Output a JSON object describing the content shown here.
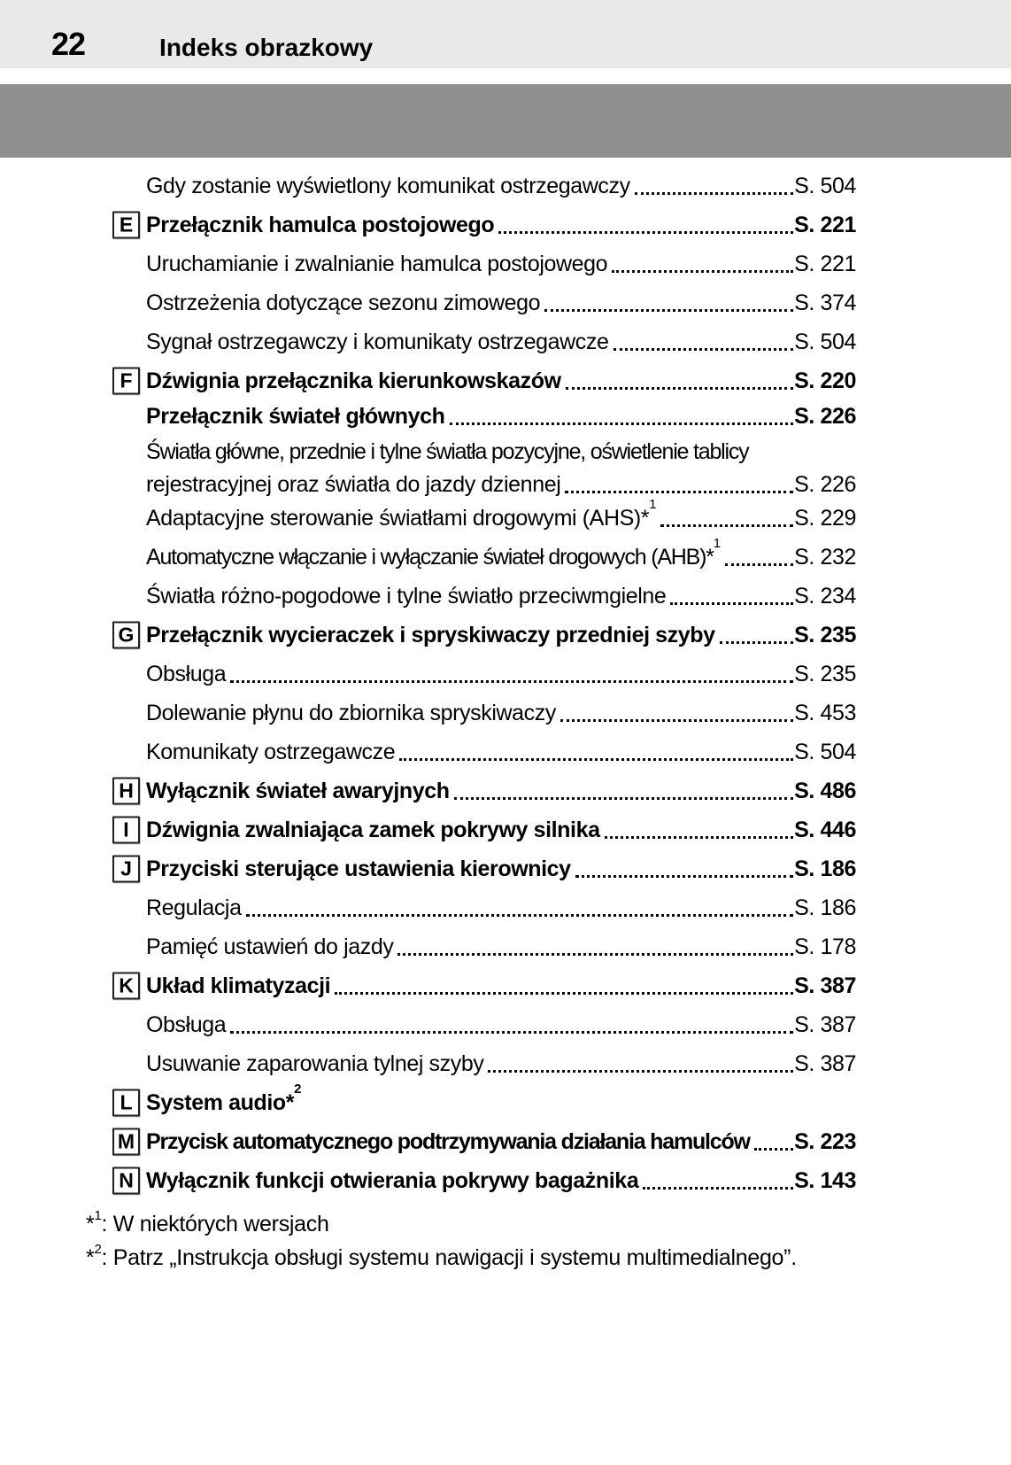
{
  "header": {
    "page_number": "22",
    "title": "Indeks obrazkowy"
  },
  "colors": {
    "header_band": "#e9e9e9",
    "section_bar": "#909090",
    "text": "#000000"
  },
  "entries": [
    {
      "text": "Gdy zostanie wyświetlony komunikat ostrzegawczy",
      "page": "S. 504"
    },
    {
      "letter": "E",
      "bold": true,
      "text": "Przełącznik hamulca postojowego",
      "page": "S. 221"
    },
    {
      "text": "Uruchamianie i zwalnianie hamulca postojowego",
      "page": "S. 221"
    },
    {
      "text": "Ostrzeżenia dotyczące sezonu zimowego",
      "page": "S. 374"
    },
    {
      "text": "Sygnał ostrzegawczy i komunikaty ostrzegawcze",
      "page": "S. 504"
    },
    {
      "letter": "F",
      "bold": true,
      "text": "Dźwignia przełącznika kierunkowskazów",
      "page": "S. 220"
    },
    {
      "bold": true,
      "variant": "tight",
      "text": "Przełącznik świateł głównych",
      "page": "S. 226"
    },
    {
      "text": "Światła główne, przednie i tylne światła pozycyjne, oświetlenie tablicy"
    },
    {
      "variant": "cont",
      "text": "rejestracyjnej oraz światła do jazdy dziennej",
      "page": "S. 226"
    },
    {
      "text": "Adaptacyjne sterowanie światłami drogowymi (AHS)*",
      "sup": "1",
      "page": "S. 229"
    },
    {
      "text": "Automatyczne włączanie i wyłączanie świateł drogowych (AHB)*",
      "sup": "1",
      "page": "S. 232"
    },
    {
      "text": "Światła różno-pogodowe i tylne światło przeciwmgielne",
      "page": "S. 234"
    },
    {
      "letter": "G",
      "bold": true,
      "text": "Przełącznik wycieraczek i spryskiwaczy przedniej szyby",
      "page": "S. 235"
    },
    {
      "text": "Obsługa",
      "page": "S. 235"
    },
    {
      "text": "Dolewanie płynu do zbiornika spryskiwaczy",
      "page": "S. 453"
    },
    {
      "text": "Komunikaty ostrzegawcze",
      "page": "S. 504"
    },
    {
      "letter": "H",
      "bold": true,
      "text": "Wyłącznik świateł awaryjnych",
      "page": "S. 486"
    },
    {
      "letter": "I",
      "bold": true,
      "text": "Dźwignia zwalniająca zamek pokrywy silnika",
      "page": "S. 446"
    },
    {
      "letter": "J",
      "bold": true,
      "text": "Przyciski sterujące ustawienia kierownicy",
      "page": "S. 186"
    },
    {
      "text": "Regulacja",
      "page": "S. 186"
    },
    {
      "text": "Pamięć ustawień do jazdy",
      "page": "S. 178"
    },
    {
      "letter": "K",
      "bold": true,
      "text": "Układ klimatyzacji",
      "page": "S. 387"
    },
    {
      "text": "Obsługa",
      "page": "S. 387"
    },
    {
      "text": "Usuwanie zaparowania tylnej szyby",
      "page": "S. 387"
    },
    {
      "letter": "L",
      "bold": true,
      "text": "System audio*",
      "sup": "2"
    },
    {
      "letter": "M",
      "bold": true,
      "text": "Przycisk automatycznego podtrzymywania działania hamulców",
      "page": "S. 223"
    },
    {
      "letter": "N",
      "bold": true,
      "text": "Wyłącznik funkcji otwierania pokrywy bagażnika",
      "page": "S. 143"
    }
  ],
  "footnotes": [
    {
      "marker": "*",
      "sup": "1",
      "text": ": W niektórych wersjach"
    },
    {
      "marker": "*",
      "sup": "2",
      "text": ": Patrz „Instrukcja obsługi systemu nawigacji i systemu multimedialnego”."
    }
  ]
}
